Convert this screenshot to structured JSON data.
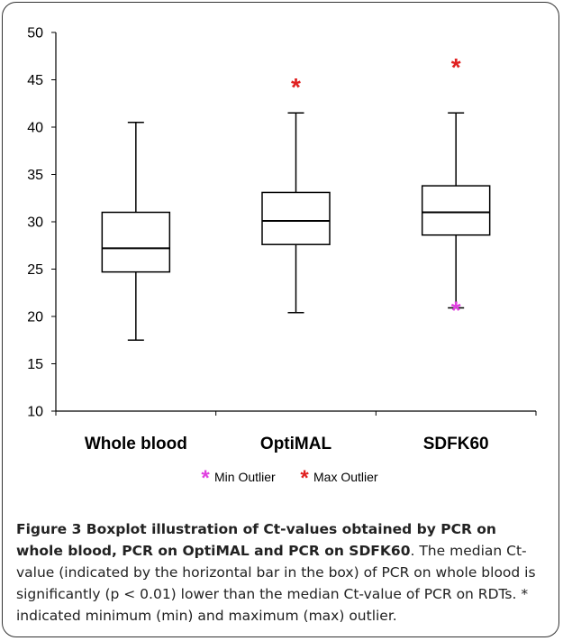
{
  "chart_data": {
    "type": "boxplot",
    "title": "",
    "xlabel": "",
    "ylabel": "",
    "ylim": [
      10,
      50
    ],
    "yticks": [
      10,
      15,
      20,
      25,
      30,
      35,
      40,
      45,
      50
    ],
    "grid": false,
    "legend_position": "bottom",
    "categories": [
      "Whole blood",
      "OptiMAL",
      "SDFK60"
    ],
    "boxes": [
      {
        "category": "Whole blood",
        "whisker_low": 17.5,
        "q1": 24.7,
        "median": 27.2,
        "q3": 31.0,
        "whisker_high": 40.5,
        "min_outlier": null,
        "max_outlier": null
      },
      {
        "category": "OptiMAL",
        "whisker_low": 20.4,
        "q1": 27.6,
        "median": 30.1,
        "q3": 33.1,
        "whisker_high": 41.5,
        "min_outlier": null,
        "max_outlier": 44.2
      },
      {
        "category": "SDFK60",
        "whisker_low": 20.9,
        "q1": 28.6,
        "median": 31.0,
        "q3": 33.8,
        "whisker_high": 41.5,
        "min_outlier": 20.6,
        "max_outlier": 46.3
      }
    ],
    "legend": [
      {
        "label": "Min Outlier",
        "color": "#e040e0"
      },
      {
        "label": "Max Outlier",
        "color": "#e02020"
      }
    ]
  },
  "caption": {
    "label": "Figure 3 Boxplot illustration of Ct-values obtained by PCR on whole blood, PCR on OptiMAL and PCR on SDFK60",
    "text": ". The median Ct-value (indicated by the horizontal bar in the box) of PCR on whole blood is significantly (p < 0.01) lower than the median Ct-value of PCR on RDTs. * indicated minimum (min) and maximum (max) outlier."
  }
}
